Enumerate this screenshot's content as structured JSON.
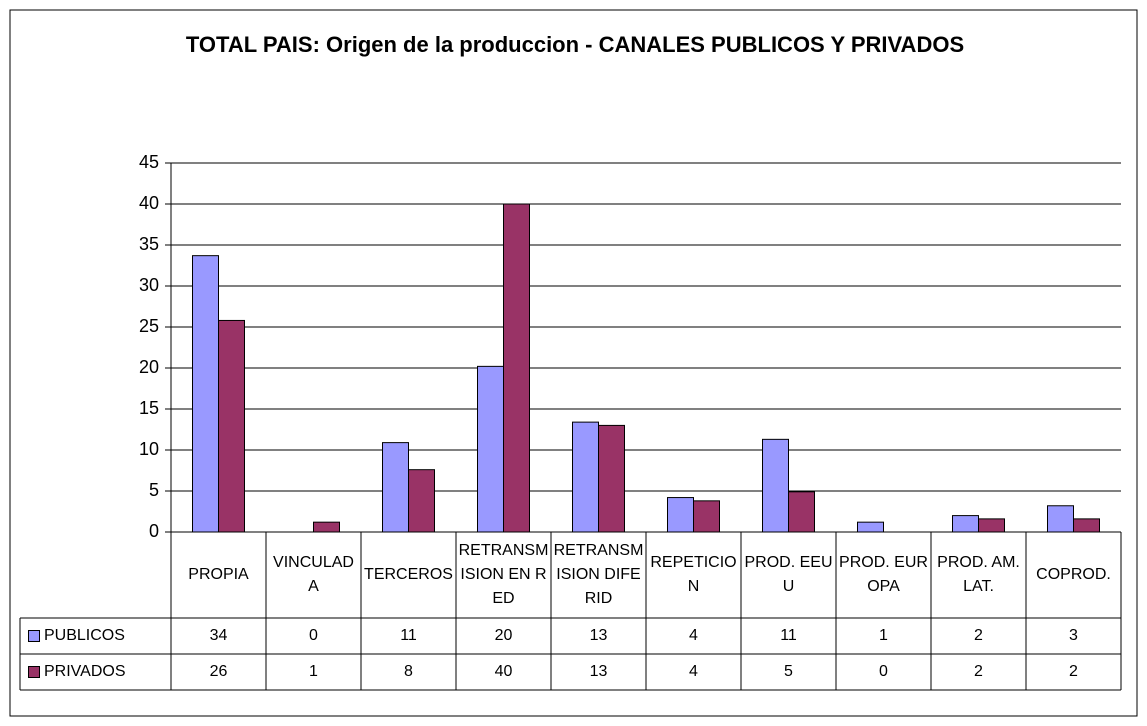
{
  "chart_data": {
    "type": "bar",
    "title": "TOTAL PAIS: Origen de la produccion - CANALES PUBLICOS Y PRIVADOS",
    "categories": [
      "PROPIA",
      "VINCULADA",
      "TERCEROS",
      "RETRANSMISION EN RED",
      "RETRANSMISION DIFERID",
      "REPETICION",
      "PROD. EEUU",
      "PROD. EUROPA",
      "PROD. AM. LAT.",
      "COPROD."
    ],
    "series": [
      {
        "name": "PUBLICOS",
        "color": "#9999ff",
        "values": [
          33.7,
          0,
          10.9,
          20.2,
          13.4,
          4.2,
          11.3,
          1.2,
          2.0,
          3.2
        ],
        "value_labels": [
          "34",
          "0",
          "11",
          "20",
          "13",
          "4",
          "11",
          "1",
          "2",
          "3"
        ]
      },
      {
        "name": "PRIVADOS",
        "color": "#993366",
        "values": [
          25.8,
          1.2,
          7.6,
          40.0,
          13.0,
          3.8,
          4.9,
          0,
          1.6,
          1.6
        ],
        "value_labels": [
          "26",
          "1",
          "8",
          "40",
          "13",
          "4",
          "5",
          "0",
          "2",
          "2"
        ]
      }
    ],
    "ylim": [
      0,
      45
    ],
    "yticks": [
      0,
      5,
      10,
      15,
      20,
      25,
      30,
      35,
      40,
      45
    ],
    "grid": true
  }
}
